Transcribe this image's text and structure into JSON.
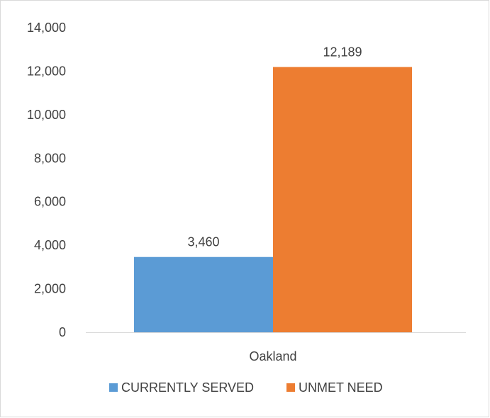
{
  "chart_data": {
    "type": "bar",
    "categories": [
      "Oakland"
    ],
    "series": [
      {
        "name": "CURRENTLY SERVED",
        "values": [
          3460
        ],
        "color": "#5b9bd5",
        "label": "3,460"
      },
      {
        "name": "UNMET NEED",
        "values": [
          12189
        ],
        "color": "#ed7d31",
        "label": "12,189"
      }
    ],
    "ylim": [
      0,
      14000
    ],
    "yticks": [
      0,
      2000,
      4000,
      6000,
      8000,
      10000,
      12000,
      14000
    ],
    "ytick_labels": [
      "0",
      "2,000",
      "4,000",
      "6,000",
      "8,000",
      "10,000",
      "12,000",
      "14,000"
    ],
    "grid": false,
    "legend_position": "bottom",
    "title": "",
    "xlabel": "",
    "ylabel": ""
  }
}
